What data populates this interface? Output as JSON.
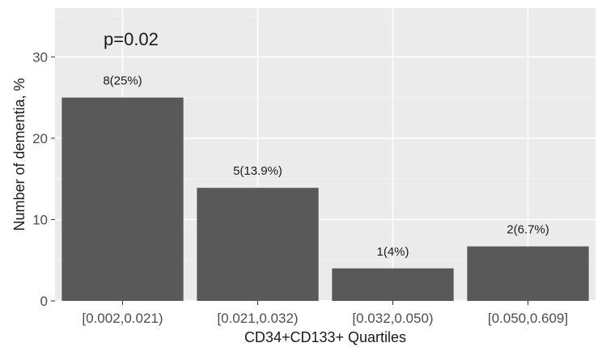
{
  "chart_data": {
    "type": "bar",
    "annotation": "p=0.02",
    "xlabel": "CD34+CD133+ Quartiles",
    "ylabel": "Number of dementia, %",
    "ylim": [
      0,
      36
    ],
    "yticks": [
      0,
      10,
      20,
      30
    ],
    "grid": true,
    "categories": [
      "[0.002,0.021)",
      "[0.021,0.032)",
      "[0.032,0.050)",
      "[0.050,0.609]"
    ],
    "values": [
      25,
      13.9,
      4,
      6.7
    ],
    "data_labels": [
      "8(25%)",
      "5(13.9%)",
      "1(4%)",
      "2(6.7%)"
    ],
    "colors": {
      "bar": "#595959",
      "panel": "#ebebeb",
      "grid_major": "#ffffff",
      "grid_minor": "#f5f5f5",
      "tick_mark": "#333333"
    }
  }
}
